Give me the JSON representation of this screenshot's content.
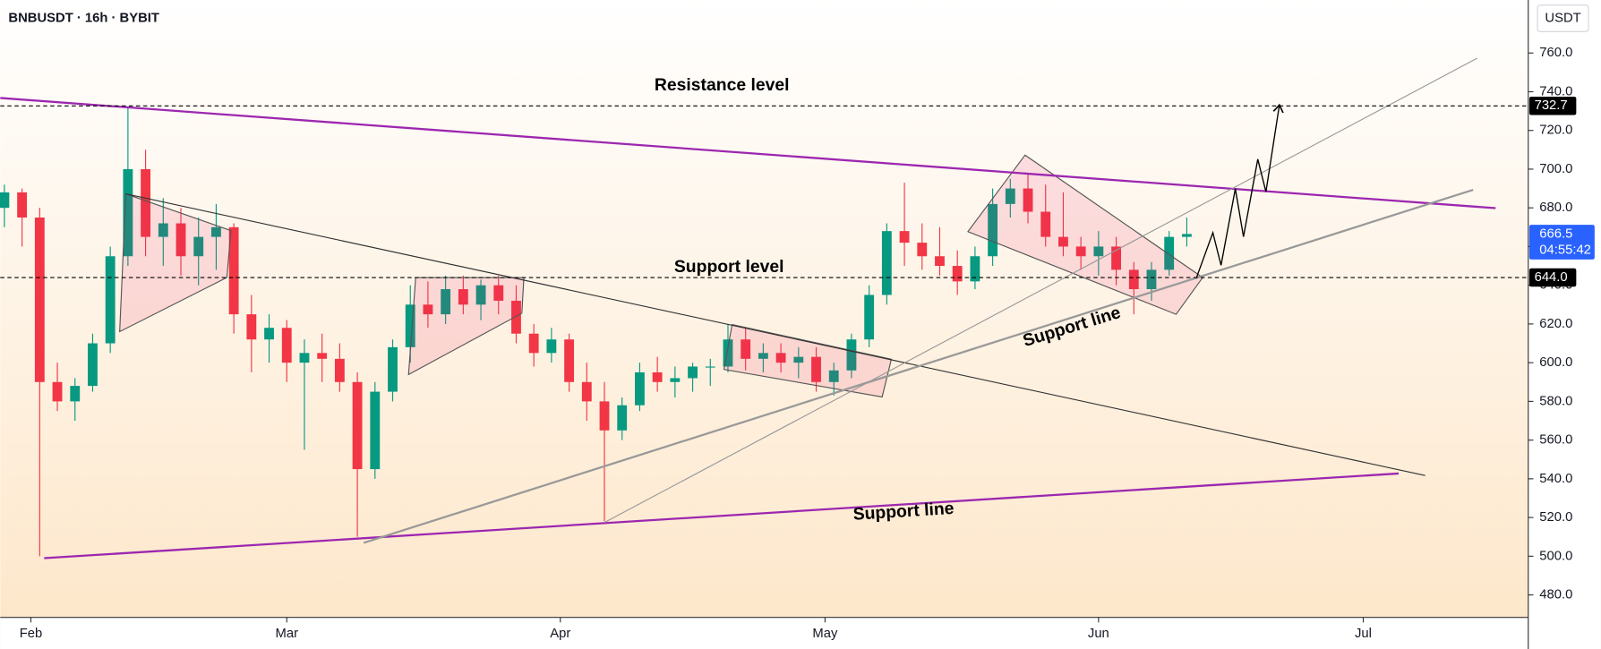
{
  "chart_data": {
    "type": "candlestick",
    "title": "BNBUSDT · 16h · BYBIT",
    "currency": "USDT",
    "annotations": [
      "Resistance level",
      "Support level",
      "Support line",
      "Support line"
    ],
    "xlim": [
      -3.47,
      169.7
    ],
    "xticks": [
      {
        "value": 0,
        "label": "Feb"
      },
      {
        "value": 29,
        "label": "Mar"
      },
      {
        "value": 60,
        "label": "Apr"
      },
      {
        "value": 90,
        "label": "May"
      },
      {
        "value": 121,
        "label": "Jun"
      },
      {
        "value": 151,
        "label": "Jul"
      }
    ],
    "ylim": [
      468.4,
      787.4
    ],
    "yticks": [
      {
        "value": 480,
        "label": "480.0"
      },
      {
        "value": 500,
        "label": "500.0"
      },
      {
        "value": 520,
        "label": "520.0"
      },
      {
        "value": 540,
        "label": "540.0"
      },
      {
        "value": 560,
        "label": "560.0"
      },
      {
        "value": 580,
        "label": "580.0"
      },
      {
        "value": 600,
        "label": "600.0"
      },
      {
        "value": 620,
        "label": "620.0"
      },
      {
        "value": 640,
        "label": "640.0"
      },
      {
        "value": 660,
        "label": "660.0"
      },
      {
        "value": 680,
        "label": "680.0"
      },
      {
        "value": 700,
        "label": "700.0"
      },
      {
        "value": 720,
        "label": "720.0"
      },
      {
        "value": 740,
        "label": "740.0"
      },
      {
        "value": 760,
        "label": "760.0"
      }
    ],
    "levels": [
      732.7,
      {
        "value": 644,
        "label": "644.0"
      }
    ],
    "last_price": 666.5,
    "countdown": "04:55:42",
    "up_color": "#089981",
    "down_color": "#f23645",
    "x": [
      -3,
      -1,
      1,
      3,
      5,
      7,
      9,
      11,
      13,
      15,
      17,
      19,
      21,
      23,
      25,
      27,
      29,
      31,
      33,
      35,
      37,
      39,
      41,
      43,
      45,
      47,
      49,
      51,
      53,
      55,
      57,
      59,
      61,
      63,
      65,
      67,
      69,
      71,
      73,
      75,
      77,
      79,
      81,
      83,
      85,
      87,
      89,
      91,
      93,
      95,
      97,
      99,
      101,
      103,
      105,
      107,
      109,
      111,
      113,
      115,
      117,
      119,
      121,
      123,
      125,
      127,
      129,
      131
    ],
    "open": [
      680,
      688,
      675,
      590,
      580,
      588,
      610,
      655,
      700,
      665,
      672,
      655,
      665,
      670,
      625,
      612,
      618,
      600,
      605,
      602,
      590,
      545,
      585,
      608,
      630,
      625,
      638,
      630,
      640,
      632,
      615,
      605,
      612,
      590,
      580,
      565,
      578,
      595,
      590,
      592,
      598,
      598,
      612,
      602,
      605,
      600,
      603,
      590,
      596,
      612,
      635,
      668,
      662,
      655,
      650,
      642,
      655,
      682,
      690,
      678,
      665,
      660,
      655,
      660,
      648,
      638,
      648,
      665
    ],
    "high": [
      692,
      690,
      680,
      600,
      592,
      615,
      660,
      732,
      710,
      685,
      680,
      675,
      682,
      672,
      635,
      625,
      622,
      612,
      615,
      610,
      595,
      590,
      612,
      640,
      642,
      645,
      645,
      643,
      645,
      640,
      620,
      618,
      615,
      600,
      590,
      582,
      600,
      603,
      598,
      600,
      602,
      620,
      618,
      610,
      610,
      608,
      608,
      600,
      615,
      640,
      672,
      693,
      672,
      670,
      658,
      660,
      690,
      695,
      698,
      692,
      688,
      665,
      668,
      665,
      652,
      652,
      668,
      675
    ],
    "low": [
      670,
      660,
      500,
      575,
      570,
      585,
      605,
      650,
      655,
      650,
      645,
      640,
      648,
      615,
      595,
      600,
      590,
      555,
      590,
      585,
      510,
      540,
      580,
      600,
      618,
      620,
      625,
      622,
      625,
      610,
      598,
      600,
      585,
      570,
      518,
      560,
      575,
      585,
      582,
      585,
      588,
      595,
      596,
      595,
      595,
      592,
      585,
      583,
      592,
      608,
      630,
      650,
      648,
      645,
      635,
      638,
      650,
      675,
      672,
      660,
      655,
      648,
      645,
      640,
      625,
      632,
      645,
      660
    ],
    "close": [
      688,
      675,
      590,
      580,
      588,
      610,
      655,
      700,
      665,
      672,
      655,
      665,
      670,
      625,
      612,
      618,
      600,
      605,
      602,
      590,
      545,
      585,
      608,
      630,
      625,
      638,
      630,
      640,
      632,
      615,
      605,
      612,
      590,
      580,
      565,
      578,
      595,
      590,
      592,
      598,
      598,
      612,
      602,
      605,
      600,
      603,
      590,
      596,
      612,
      635,
      668,
      662,
      655,
      650,
      642,
      655,
      682,
      690,
      678,
      665,
      660,
      655,
      660,
      648,
      638,
      648,
      665,
      666.5
    ]
  }
}
